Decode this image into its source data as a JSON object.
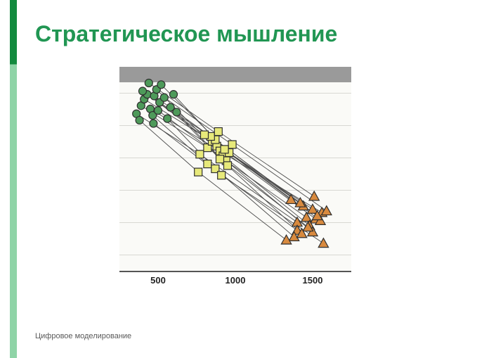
{
  "slide": {
    "title": "Стратегическое мышление",
    "footer": "Цифровое моделирование",
    "accent_color": "#138a3e",
    "accent_color_light": "#8fd4a7",
    "title_color": "#219653",
    "title_fontsize": 32,
    "footer_fontsize": 11,
    "footer_color": "#5a5a5a",
    "background": "#ffffff"
  },
  "chart": {
    "type": "scatter-line",
    "plot_bg": "#fafaf7",
    "header_band_color": "#9a9a9a",
    "grid_color": "#d8d8d3",
    "axis_color": "#555555",
    "line_color": "#4a4a4a",
    "line_width": 0.9,
    "marker_stroke": "#2f2f2f",
    "marker_stroke_width": 1.2,
    "marker_radius": 5.5,
    "xlim": [
      250,
      1750
    ],
    "ylim": [
      0.5,
      6.8
    ],
    "x_ticks": [
      500,
      1000,
      1500
    ],
    "y_gridlines": [
      1,
      2,
      3,
      4,
      5,
      6
    ],
    "x_tick_font": 13,
    "groups": {
      "A": {
        "shape": "circle",
        "fill": "#4e9a5a"
      },
      "B": {
        "shape": "square",
        "fill": "#e7e97a"
      },
      "C": {
        "shape": "triangle",
        "fill": "#d88a3f"
      }
    },
    "subjects": [
      {
        "A": [
          360,
          5.35
        ],
        "B": [
          770,
          4.1
        ],
        "C": [
          1400,
          2.0
        ]
      },
      {
        "A": [
          390,
          5.6
        ],
        "B": [
          820,
          4.3
        ],
        "C": [
          1460,
          2.15
        ]
      },
      {
        "A": [
          410,
          5.8
        ],
        "B": [
          850,
          4.5
        ],
        "C": [
          1500,
          2.4
        ]
      },
      {
        "A": [
          430,
          5.95
        ],
        "B": [
          880,
          4.35
        ],
        "C": [
          1520,
          2.1
        ]
      },
      {
        "A": [
          450,
          5.5
        ],
        "B": [
          900,
          4.2
        ],
        "C": [
          1560,
          2.3
        ]
      },
      {
        "A": [
          465,
          5.3
        ],
        "B": [
          820,
          3.8
        ],
        "C": [
          1400,
          1.75
        ]
      },
      {
        "A": [
          475,
          5.9
        ],
        "B": [
          870,
          4.55
        ],
        "C": [
          1440,
          2.5
        ]
      },
      {
        "A": [
          490,
          6.1
        ],
        "B": [
          920,
          4.05
        ],
        "C": [
          1480,
          1.9
        ]
      },
      {
        "A": [
          500,
          5.45
        ],
        "B": [
          940,
          3.9
        ],
        "C": [
          1500,
          1.7
        ]
      },
      {
        "A": [
          510,
          5.7
        ],
        "B": [
          840,
          4.65
        ],
        "C": [
          1420,
          2.6
        ]
      },
      {
        "A": [
          520,
          6.25
        ],
        "B": [
          960,
          4.15
        ],
        "C": [
          1550,
          2.05
        ]
      },
      {
        "A": [
          540,
          5.85
        ],
        "B": [
          980,
          4.4
        ],
        "C": [
          1590,
          2.35
        ]
      },
      {
        "A": [
          560,
          5.2
        ],
        "B": [
          870,
          3.65
        ],
        "C": [
          1380,
          1.55
        ]
      },
      {
        "A": [
          580,
          5.55
        ],
        "B": [
          900,
          3.95
        ],
        "C": [
          1470,
          1.85
        ]
      },
      {
        "A": [
          600,
          5.95
        ],
        "B": [
          930,
          4.25
        ],
        "C": [
          1530,
          2.2
        ]
      },
      {
        "A": [
          620,
          5.4
        ],
        "B": [
          950,
          3.75
        ],
        "C": [
          1430,
          1.65
        ]
      },
      {
        "A": [
          400,
          6.05
        ],
        "B": [
          800,
          4.7
        ],
        "C": [
          1360,
          2.7
        ]
      },
      {
        "A": [
          380,
          5.15
        ],
        "B": [
          760,
          3.55
        ],
        "C": [
          1330,
          1.45
        ]
      },
      {
        "A": [
          440,
          6.3
        ],
        "B": [
          890,
          4.8
        ],
        "C": [
          1510,
          2.8
        ]
      },
      {
        "A": [
          470,
          5.05
        ],
        "B": [
          910,
          3.45
        ],
        "C": [
          1570,
          1.35
        ]
      }
    ]
  }
}
